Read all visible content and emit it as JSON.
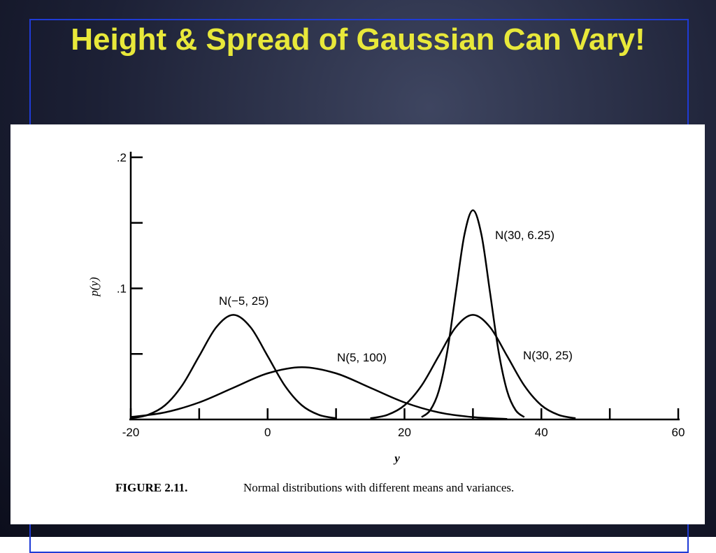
{
  "slide_title": "Height & Spread of Gaussian Can Vary!",
  "chart_data": {
    "type": "line",
    "xlabel": "y",
    "ylabel": "p(y)",
    "caption_label": "FIGURE 2.11.",
    "caption_text": "Normal distributions with different means and variances.",
    "xlim": [
      -20,
      60
    ],
    "xticks": [
      -20,
      0,
      20,
      40,
      60
    ],
    "xminorticks": [
      -10,
      10,
      30,
      50
    ],
    "ylim": [
      0,
      0.2
    ],
    "yticks": [
      {
        "value": 0.1,
        "label": ".1"
      },
      {
        "value": 0.2,
        "label": ".2"
      }
    ],
    "yminorticks": [
      0.05,
      0.15
    ],
    "color": "#000000",
    "series": [
      {
        "name": "N(−5, 25)",
        "x": [
          -20,
          -17.5,
          -15,
          -12.5,
          -10,
          -7.5,
          -5,
          -2.5,
          0,
          2.5,
          5,
          7.5,
          10
        ],
        "values": [
          0.0009,
          0.0035,
          0.0108,
          0.0259,
          0.0484,
          0.0704,
          0.0798,
          0.0704,
          0.0484,
          0.0259,
          0.0108,
          0.0035,
          0.0009
        ]
      },
      {
        "name": "N(5, 100)",
        "x": [
          -20,
          -15,
          -10,
          -5,
          0,
          5,
          10,
          15,
          20,
          25,
          30,
          35
        ],
        "values": [
          0.0018,
          0.0054,
          0.013,
          0.0242,
          0.0352,
          0.0399,
          0.0352,
          0.0242,
          0.013,
          0.0054,
          0.0018,
          0.0004
        ]
      },
      {
        "name": "N(30, 6.25)",
        "x": [
          22.5,
          23.75,
          25,
          26.25,
          27.5,
          28.75,
          30,
          31.25,
          32.5,
          33.75,
          35,
          36.25,
          37.5
        ],
        "values": [
          0.0018,
          0.007,
          0.0216,
          0.0518,
          0.0968,
          0.1408,
          0.1596,
          0.1408,
          0.0968,
          0.0518,
          0.0216,
          0.007,
          0.0018
        ]
      },
      {
        "name": "N(30, 25)",
        "x": [
          15,
          17.5,
          20,
          22.5,
          25,
          27.5,
          30,
          32.5,
          35,
          37.5,
          40,
          42.5,
          45
        ],
        "values": [
          0.0009,
          0.0035,
          0.0108,
          0.0259,
          0.0484,
          0.0704,
          0.0798,
          0.0704,
          0.0484,
          0.0259,
          0.0108,
          0.0035,
          0.0009
        ]
      }
    ]
  }
}
